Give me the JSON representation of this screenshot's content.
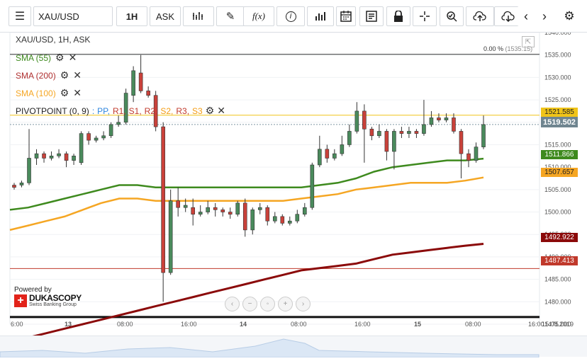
{
  "toolbar": {
    "symbol_value": "XAU/USD",
    "period": "1H",
    "side": "ASK",
    "fx_label": "f(x)",
    "icons": [
      "menu-icon",
      "bar-style-icon",
      "draw-icon",
      "function-icon",
      "info-icon",
      "volume-icon",
      "calendar-icon",
      "news-icon",
      "lock-icon",
      "crosshair-icon",
      "zoom-icon",
      "upload-icon",
      "download-icon",
      "chevron-left-icon",
      "chevron-right-icon",
      "gear-icon"
    ]
  },
  "chart": {
    "title": "XAU/USD, 1H, ASK",
    "pct_label": "0.00 %",
    "pct_value": "(1535.15)",
    "legend": {
      "sma55": "SMA (55)",
      "sma200": "SMA (200)",
      "sma100": "SMA (100)",
      "pivot_prefix": "PIVOTPOINT (0, 9)",
      "pivot_items": [
        {
          "label": "PP,",
          "color": "#2e86de"
        },
        {
          "label": "R1,",
          "color": "#c0392b"
        },
        {
          "label": "S1,",
          "color": "#c0392b"
        },
        {
          "label": "R2,",
          "color": "#c0392b"
        },
        {
          "label": "S2,",
          "color": "#f39c12"
        },
        {
          "label": "R3,",
          "color": "#c0392b"
        },
        {
          "label": "S3",
          "color": "#f39c12"
        }
      ]
    },
    "price_ticks": [
      "1540.000",
      "1535.000",
      "1530.000",
      "1525.000",
      "1520.000",
      "1515.000",
      "1510.000",
      "1505.000",
      "1500.000",
      "1495.000",
      "1490.000",
      "1485.000",
      "1480.000",
      "1475.000"
    ],
    "time_labels": [
      "6:00",
      "13",
      "08:00",
      "16:00",
      "14",
      "08:00",
      "16:00",
      "15",
      "08:00",
      "16:00"
    ],
    "date_end": "15.08.2019",
    "tags": {
      "r_line": "1521.585",
      "current": "1519.502",
      "sma55": "1511.866",
      "sma100": "1507.657",
      "sma200": "1492.922",
      "s_line": "1487.413"
    },
    "powered_by": "Powered by",
    "brand": "DUKASCOPY",
    "brand_sub": "Swiss Banking Group",
    "colors": {
      "up": "#4a8a5c",
      "down": "#c9413a",
      "sma55": "#3e8a1e",
      "sma100": "#f5a623",
      "sma200": "#8b0a0a",
      "r_line": "#f0c419",
      "s_line": "#c0392b"
    }
  },
  "chart_data": {
    "type": "candlestick",
    "y_range": [
      1475,
      1540
    ],
    "candles": [
      {
        "o": 1506.0,
        "c": 1505.5,
        "h": 1506.5,
        "l": 1505.0
      },
      {
        "o": 1506.0,
        "c": 1506.5,
        "h": 1507.0,
        "l": 1505.5
      },
      {
        "o": 1506.5,
        "c": 1512.0,
        "h": 1518.5,
        "l": 1506.0
      },
      {
        "o": 1512.0,
        "c": 1513.0,
        "h": 1514.0,
        "l": 1510.5
      },
      {
        "o": 1513.0,
        "c": 1512.0,
        "h": 1513.5,
        "l": 1511.0
      },
      {
        "o": 1512.0,
        "c": 1512.5,
        "h": 1513.5,
        "l": 1511.5
      },
      {
        "o": 1512.5,
        "c": 1513.0,
        "h": 1514.0,
        "l": 1512.0
      },
      {
        "o": 1513.0,
        "c": 1511.5,
        "h": 1513.5,
        "l": 1510.0
      },
      {
        "o": 1511.5,
        "c": 1512.5,
        "h": 1513.0,
        "l": 1510.5
      },
      {
        "o": 1511.0,
        "c": 1517.5,
        "h": 1518.0,
        "l": 1510.5
      },
      {
        "o": 1517.5,
        "c": 1516.0,
        "h": 1518.0,
        "l": 1515.0
      },
      {
        "o": 1516.0,
        "c": 1516.5,
        "h": 1517.0,
        "l": 1515.5
      },
      {
        "o": 1516.5,
        "c": 1517.0,
        "h": 1518.0,
        "l": 1516.0
      },
      {
        "o": 1517.0,
        "c": 1519.5,
        "h": 1520.0,
        "l": 1516.5
      },
      {
        "o": 1519.5,
        "c": 1520.0,
        "h": 1521.5,
        "l": 1519.0
      },
      {
        "o": 1520.0,
        "c": 1526.5,
        "h": 1527.5,
        "l": 1519.5
      },
      {
        "o": 1526.0,
        "c": 1531.5,
        "h": 1532.5,
        "l": 1524.5
      },
      {
        "o": 1531.0,
        "c": 1527.0,
        "h": 1535.0,
        "l": 1526.5
      },
      {
        "o": 1527.0,
        "c": 1526.0,
        "h": 1528.0,
        "l": 1525.5
      },
      {
        "o": 1526.0,
        "c": 1519.0,
        "h": 1527.0,
        "l": 1518.0
      },
      {
        "o": 1519.0,
        "c": 1486.5,
        "h": 1520.0,
        "l": 1480.0
      },
      {
        "o": 1486.5,
        "c": 1502.5,
        "h": 1505.0,
        "l": 1486.0
      },
      {
        "o": 1502.5,
        "c": 1501.0,
        "h": 1505.5,
        "l": 1499.0
      },
      {
        "o": 1501.0,
        "c": 1501.5,
        "h": 1503.0,
        "l": 1500.0
      },
      {
        "o": 1501.0,
        "c": 1499.5,
        "h": 1503.0,
        "l": 1497.0
      },
      {
        "o": 1499.5,
        "c": 1500.0,
        "h": 1501.5,
        "l": 1499.0
      },
      {
        "o": 1500.0,
        "c": 1501.0,
        "h": 1502.5,
        "l": 1499.5
      },
      {
        "o": 1501.0,
        "c": 1500.5,
        "h": 1502.0,
        "l": 1499.0
      },
      {
        "o": 1500.5,
        "c": 1500.0,
        "h": 1501.0,
        "l": 1499.0
      },
      {
        "o": 1500.0,
        "c": 1499.5,
        "h": 1501.0,
        "l": 1498.5
      },
      {
        "o": 1499.5,
        "c": 1502.0,
        "h": 1502.5,
        "l": 1499.0
      },
      {
        "o": 1502.0,
        "c": 1496.0,
        "h": 1503.0,
        "l": 1494.5
      },
      {
        "o": 1496.0,
        "c": 1500.5,
        "h": 1501.0,
        "l": 1495.0
      },
      {
        "o": 1500.5,
        "c": 1501.0,
        "h": 1502.0,
        "l": 1499.5
      },
      {
        "o": 1501.0,
        "c": 1498.0,
        "h": 1501.5,
        "l": 1497.0
      },
      {
        "o": 1498.0,
        "c": 1499.0,
        "h": 1500.0,
        "l": 1497.5
      },
      {
        "o": 1499.0,
        "c": 1497.5,
        "h": 1499.5,
        "l": 1497.0
      },
      {
        "o": 1497.5,
        "c": 1498.0,
        "h": 1499.0,
        "l": 1497.0
      },
      {
        "o": 1498.0,
        "c": 1499.5,
        "h": 1500.5,
        "l": 1497.5
      },
      {
        "o": 1499.5,
        "c": 1501.0,
        "h": 1502.0,
        "l": 1499.0
      },
      {
        "o": 1501.0,
        "c": 1510.5,
        "h": 1511.0,
        "l": 1500.5
      },
      {
        "o": 1510.5,
        "c": 1514.0,
        "h": 1517.0,
        "l": 1510.0
      },
      {
        "o": 1514.0,
        "c": 1512.0,
        "h": 1515.0,
        "l": 1511.0
      },
      {
        "o": 1512.0,
        "c": 1513.0,
        "h": 1514.0,
        "l": 1511.5
      },
      {
        "o": 1513.0,
        "c": 1515.0,
        "h": 1517.0,
        "l": 1512.5
      },
      {
        "o": 1515.0,
        "c": 1518.0,
        "h": 1519.5,
        "l": 1514.5
      },
      {
        "o": 1518.0,
        "c": 1522.5,
        "h": 1524.5,
        "l": 1517.5
      },
      {
        "o": 1522.5,
        "c": 1518.5,
        "h": 1524.0,
        "l": 1511.0
      },
      {
        "o": 1518.5,
        "c": 1517.0,
        "h": 1519.0,
        "l": 1516.0
      },
      {
        "o": 1517.0,
        "c": 1518.0,
        "h": 1519.5,
        "l": 1516.5
      },
      {
        "o": 1518.0,
        "c": 1513.5,
        "h": 1518.5,
        "l": 1511.5
      },
      {
        "o": 1513.5,
        "c": 1518.0,
        "h": 1518.5,
        "l": 1509.5
      },
      {
        "o": 1518.0,
        "c": 1517.5,
        "h": 1519.0,
        "l": 1516.5
      },
      {
        "o": 1517.5,
        "c": 1518.0,
        "h": 1519.0,
        "l": 1516.5
      },
      {
        "o": 1518.0,
        "c": 1517.5,
        "h": 1518.5,
        "l": 1516.5
      },
      {
        "o": 1517.5,
        "c": 1519.5,
        "h": 1525.0,
        "l": 1517.0
      },
      {
        "o": 1519.5,
        "c": 1521.0,
        "h": 1522.5,
        "l": 1519.0
      },
      {
        "o": 1521.0,
        "c": 1520.5,
        "h": 1522.0,
        "l": 1520.0
      },
      {
        "o": 1520.5,
        "c": 1521.0,
        "h": 1522.0,
        "l": 1520.0
      },
      {
        "o": 1521.0,
        "c": 1518.0,
        "h": 1522.0,
        "l": 1517.5
      },
      {
        "o": 1518.0,
        "c": 1513.0,
        "h": 1518.5,
        "l": 1507.5
      },
      {
        "o": 1513.0,
        "c": 1511.5,
        "h": 1514.0,
        "l": 1510.0
      },
      {
        "o": 1511.5,
        "c": 1514.5,
        "h": 1515.5,
        "l": 1511.0
      },
      {
        "o": 1514.5,
        "c": 1519.5,
        "h": 1521.5,
        "l": 1514.0
      }
    ],
    "sma55": [
      1500.5,
      1501.0,
      1502.0,
      1503.0,
      1504.0,
      1505.0,
      1506.0,
      1506.0,
      1505.5,
      1505.5,
      1505.5,
      1505.5,
      1505.5,
      1505.5,
      1505.5,
      1505.5,
      1505.5,
      1506.0,
      1506.5,
      1507.5,
      1509.0,
      1510.0,
      1510.5,
      1511.0,
      1511.5,
      1511.5,
      1511.9
    ],
    "sma100": [
      1496.0,
      1497.0,
      1498.0,
      1499.0,
      1500.5,
      1502.0,
      1503.0,
      1503.0,
      1502.5,
      1502.5,
      1502.5,
      1502.5,
      1502.5,
      1502.5,
      1502.5,
      1502.5,
      1503.0,
      1503.5,
      1504.0,
      1505.0,
      1505.5,
      1506.0,
      1506.5,
      1506.5,
      1506.5,
      1507.0,
      1507.7
    ],
    "sma200": [
      1471.0,
      1472.0,
      1473.0,
      1474.0,
      1475.0,
      1476.0,
      1477.0,
      1478.0,
      1479.0,
      1480.0,
      1481.0,
      1482.0,
      1483.0,
      1484.0,
      1485.0,
      1486.0,
      1487.0,
      1487.5,
      1488.0,
      1488.5,
      1489.5,
      1490.5,
      1491.0,
      1491.5,
      1492.0,
      1492.5,
      1492.9
    ]
  }
}
